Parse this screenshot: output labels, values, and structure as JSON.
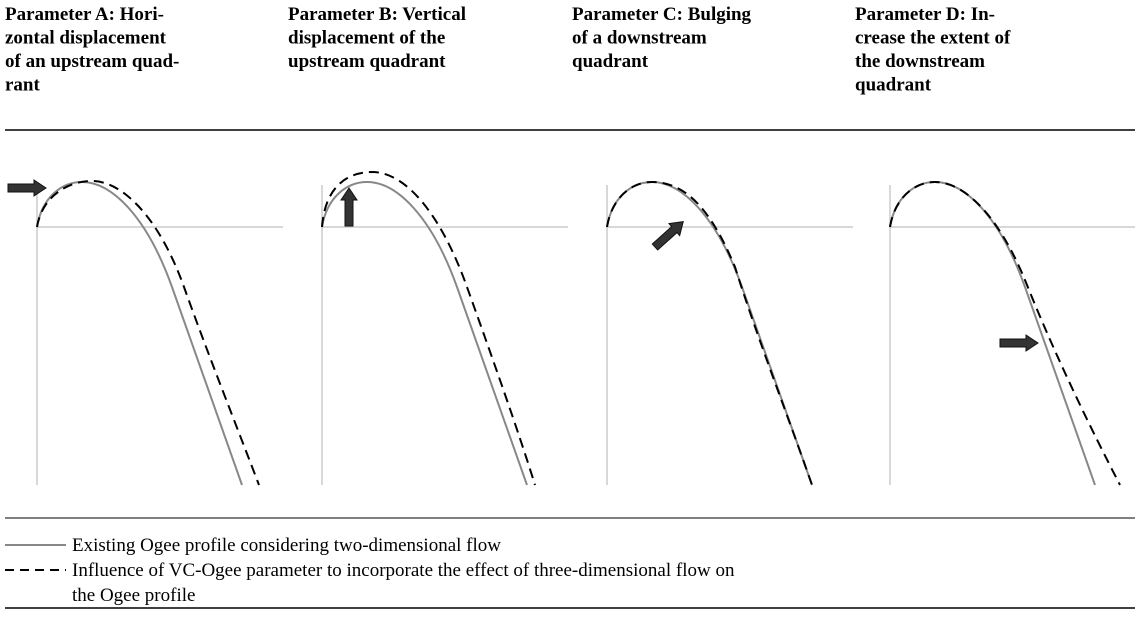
{
  "panels": [
    {
      "title_lines": [
        "Parameter A: Hori-",
        "zontal displacement",
        "of an upstream quad-",
        "rant"
      ]
    },
    {
      "title_lines": [
        "Parameter B: Vertical",
        "displacement of the",
        "upstream quadrant"
      ]
    },
    {
      "title_lines": [
        "Parameter C: Bulging",
        "of a downstream",
        "quadrant"
      ]
    },
    {
      "title_lines": [
        "Parameter D: In-",
        "crease the extent of",
        "the downstream",
        "quadrant"
      ]
    }
  ],
  "legend": [
    {
      "lines": [
        "Existing Ogee profile considering two-dimensional flow"
      ]
    },
    {
      "lines": [
        "Influence of VC-Ogee parameter to incorporate the effect of three-dimensional flow on",
        "the Ogee profile"
      ]
    }
  ]
}
